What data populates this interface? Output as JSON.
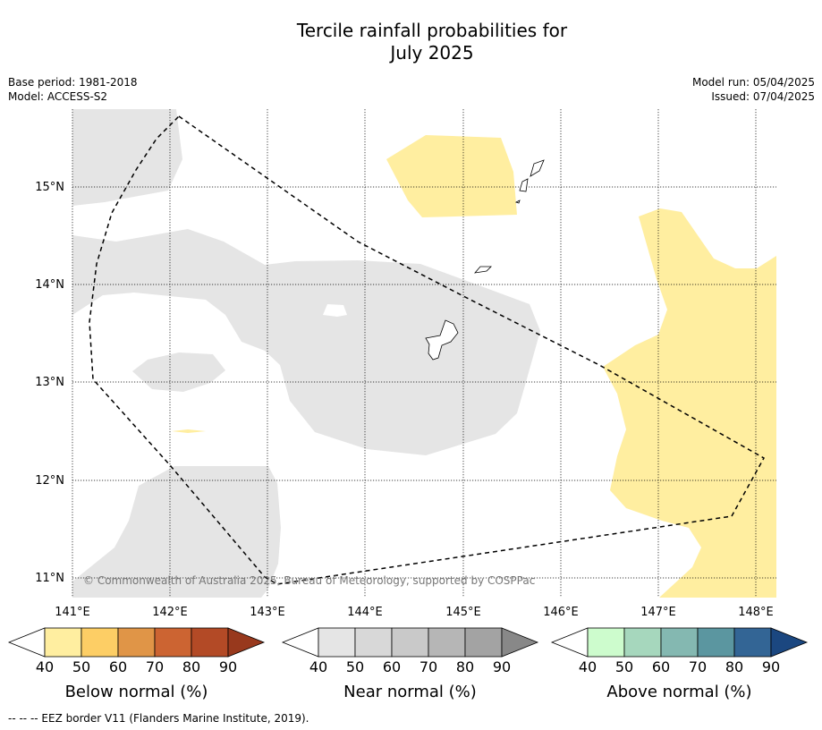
{
  "title": {
    "line1": "Tercile rainfall probabilities for",
    "line2": "July 2025"
  },
  "meta": {
    "base_period": "Base period: 1981-2018",
    "model": "Model: ACCESS-S2",
    "model_run": "Model run: 05/04/2025",
    "issued": "Issued: 07/04/2025"
  },
  "map": {
    "lon_ticks": [
      "141°E",
      "142°E",
      "143°E",
      "144°E",
      "145°E",
      "146°E",
      "147°E",
      "148°E"
    ],
    "lat_ticks": [
      "15°N",
      "14°N",
      "13°N",
      "12°N",
      "11°N"
    ],
    "copyright": "© Commonwealth of Australia 2025, Bureau of Meteorology, supported by COSPPac",
    "colors": {
      "near_normal_fill": "#e5e5e5",
      "below_normal_fill": "#ffeea0",
      "eez_border": "#000000"
    }
  },
  "legends": [
    {
      "label": "Below normal (%)",
      "ticks": [
        "40",
        "50",
        "60",
        "70",
        "80",
        "90"
      ],
      "colors": [
        "#ffffff",
        "#ffeea0",
        "#fdce65",
        "#e09547",
        "#cc6432",
        "#b34a26",
        "#98391d"
      ]
    },
    {
      "label": "Near normal (%)",
      "ticks": [
        "40",
        "50",
        "60",
        "70",
        "80",
        "90"
      ],
      "colors": [
        "#ffffff",
        "#e5e5e5",
        "#d8d8d8",
        "#c9c9c9",
        "#b6b6b6",
        "#a3a3a3",
        "#888888"
      ]
    },
    {
      "label": "Above normal (%)",
      "ticks": [
        "40",
        "50",
        "60",
        "70",
        "80",
        "90"
      ],
      "colors": [
        "#ffffff",
        "#cdfccd",
        "#a6d7bd",
        "#84b8b1",
        "#5b96a0",
        "#336595",
        "#1b4780"
      ]
    }
  ],
  "footer": "--  --  -- EEZ border V11 (Flanders Marine Institute, 2019)."
}
